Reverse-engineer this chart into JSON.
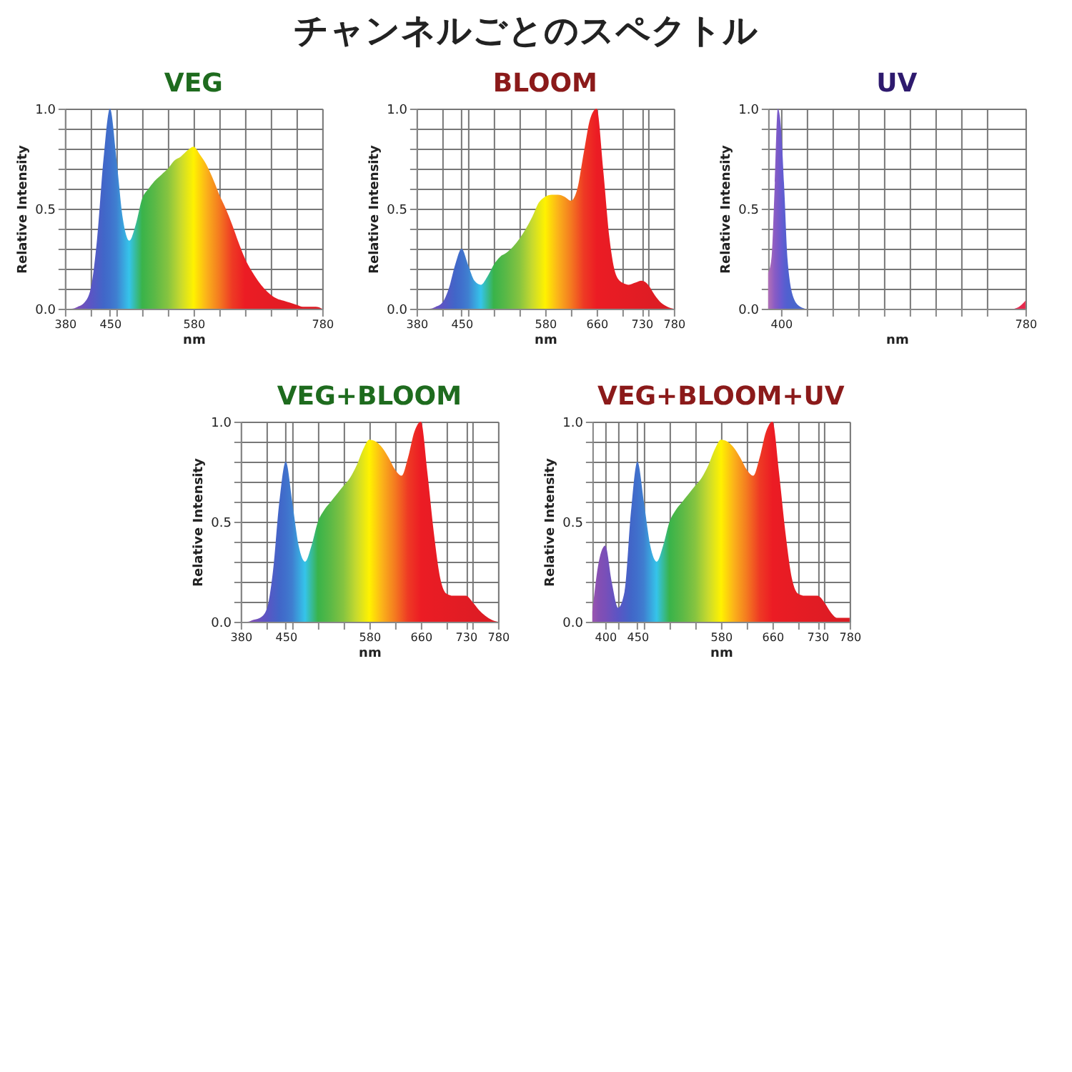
{
  "chart_data": [
    {
      "type": "other",
      "title": "チャンネルごとのスペクトル"
    },
    {
      "type": "area",
      "title": "VEG",
      "xlabel": "nm",
      "ylabel": "Relative Intensity",
      "grid": true,
      "xlim": [
        380,
        780
      ],
      "ylim": [
        0,
        1
      ],
      "xticks": [
        380,
        {
          "value": 420,
          "label": null
        },
        450,
        {
          "value": 460,
          "label": null
        },
        {
          "value": 500,
          "label": null
        },
        {
          "value": 540,
          "label": null
        },
        580,
        {
          "value": 620,
          "label": null
        },
        {
          "value": 660,
          "label": null
        },
        {
          "value": 700,
          "label": null
        },
        {
          "value": 740,
          "label": null
        },
        780
      ],
      "yticks": [
        {
          "value": 0,
          "label": "0.0"
        },
        {
          "value": 0.1,
          "label": null
        },
        {
          "value": 0.2,
          "label": null
        },
        {
          "value": 0.3,
          "label": null
        },
        {
          "value": 0.4,
          "label": null
        },
        {
          "value": 0.5,
          "label": "0.5"
        },
        {
          "value": 0.6,
          "label": null
        },
        {
          "value": 0.7,
          "label": null
        },
        {
          "value": 0.8,
          "label": null
        },
        {
          "value": 0.9,
          "label": null
        },
        {
          "value": 1,
          "label": "1.0"
        }
      ],
      "x": [
        380,
        390,
        400,
        410,
        420,
        430,
        440,
        450,
        460,
        470,
        480,
        490,
        500,
        510,
        520,
        530,
        540,
        550,
        560,
        570,
        580,
        590,
        600,
        610,
        620,
        630,
        640,
        650,
        660,
        670,
        680,
        690,
        700,
        710,
        720,
        730,
        740,
        750,
        760,
        770,
        780
      ],
      "series": [
        {
          "colors": [
            "#8d4fae",
            "#844fb3",
            "#7a4fb8",
            "#6a52be",
            "#5b55c4",
            "#4e5dc6",
            "#4166c8",
            "#4070cc",
            "#3f7fd0",
            "#3aa2dd",
            "#35c4ea",
            "#37bb9a",
            "#39b34a",
            "#4ab648",
            "#5cb946",
            "#71be43",
            "#86c440",
            "#a7cf37",
            "#c8da2e",
            "#e4e617",
            "#fff200",
            "#fdd20d",
            "#fbb21a",
            "#f7961d",
            "#f47a20",
            "#f15a22",
            "#ee3a24",
            "#ed2b24",
            "#ec1c24",
            "#ea1c24",
            "#e81c24",
            "#e71c24",
            "#e51c24",
            "#e41c24",
            "#e21c24",
            "#e11c24",
            "#df1c24",
            "#de1c24",
            "#dc1c24",
            "#db1c24",
            "#d91c24"
          ],
          "values": [
            0,
            0,
            0.01,
            0.03,
            0.1,
            0.35,
            0.75,
            1.0,
            0.75,
            0.45,
            0.34,
            0.42,
            0.55,
            0.6,
            0.64,
            0.67,
            0.7,
            0.74,
            0.76,
            0.79,
            0.81,
            0.77,
            0.72,
            0.65,
            0.57,
            0.5,
            0.42,
            0.33,
            0.25,
            0.19,
            0.14,
            0.1,
            0.07,
            0.05,
            0.04,
            0.03,
            0.02,
            0.01,
            0.01,
            0.01,
            0
          ]
        }
      ]
    },
    {
      "type": "area",
      "title": "BLOOM",
      "xlabel": "nm",
      "ylabel": "Relative Intensity",
      "grid": true,
      "xlim": [
        380,
        780
      ],
      "ylim": [
        0,
        1
      ],
      "xticks": [
        380,
        {
          "value": 420,
          "label": null
        },
        450,
        {
          "value": 460,
          "label": null
        },
        {
          "value": 500,
          "label": null
        },
        {
          "value": 540,
          "label": null
        },
        580,
        {
          "value": 620,
          "label": null
        },
        660,
        {
          "value": 700,
          "label": null
        },
        730,
        {
          "value": 740,
          "label": null
        },
        780
      ],
      "yticks": [
        {
          "value": 0,
          "label": "0.0"
        },
        {
          "value": 0.1,
          "label": null
        },
        {
          "value": 0.2,
          "label": null
        },
        {
          "value": 0.3,
          "label": null
        },
        {
          "value": 0.4,
          "label": null
        },
        {
          "value": 0.5,
          "label": "0.5"
        },
        {
          "value": 0.6,
          "label": null
        },
        {
          "value": 0.7,
          "label": null
        },
        {
          "value": 0.8,
          "label": null
        },
        {
          "value": 0.9,
          "label": null
        },
        {
          "value": 1,
          "label": "1.0"
        }
      ],
      "x": [
        380,
        390,
        400,
        410,
        420,
        430,
        440,
        450,
        460,
        470,
        480,
        490,
        500,
        510,
        520,
        530,
        540,
        550,
        560,
        570,
        580,
        590,
        600,
        610,
        620,
        630,
        640,
        650,
        660,
        670,
        680,
        690,
        700,
        710,
        720,
        730,
        740,
        750,
        760,
        770,
        780
      ],
      "series": [
        {
          "colors": [
            "#8d4fae",
            "#844fb3",
            "#7a4fb8",
            "#6a52be",
            "#5b55c4",
            "#4e5dc6",
            "#4166c8",
            "#4070cc",
            "#3f7fd0",
            "#3aa2dd",
            "#35c4ea",
            "#37bb9a",
            "#39b34a",
            "#4ab648",
            "#5cb946",
            "#71be43",
            "#86c440",
            "#a7cf37",
            "#c8da2e",
            "#e4e617",
            "#fff200",
            "#fdd20d",
            "#fbb21a",
            "#f7961d",
            "#f47a20",
            "#f15a22",
            "#ee3a24",
            "#ed2b24",
            "#ec1c24",
            "#ea1c24",
            "#e81c24",
            "#e71c24",
            "#e51c24",
            "#e41c24",
            "#e21c24",
            "#e11c24",
            "#df1c24",
            "#de1c24",
            "#dc1c24",
            "#db1c24",
            "#d91c24"
          ],
          "values": [
            0,
            0,
            0,
            0.01,
            0.03,
            0.1,
            0.22,
            0.3,
            0.22,
            0.14,
            0.12,
            0.16,
            0.22,
            0.26,
            0.28,
            0.31,
            0.35,
            0.4,
            0.46,
            0.53,
            0.56,
            0.57,
            0.57,
            0.56,
            0.54,
            0.6,
            0.78,
            0.95,
            1.0,
            0.7,
            0.35,
            0.17,
            0.13,
            0.12,
            0.13,
            0.14,
            0.12,
            0.07,
            0.03,
            0.01,
            0
          ]
        }
      ]
    },
    {
      "type": "area",
      "title": "UV",
      "xlabel": "nm",
      "ylabel": "Relative Intensity",
      "grid": true,
      "xlim": [
        380,
        780
      ],
      "ylim": [
        0,
        1
      ],
      "xticks": [
        400,
        {
          "value": 440,
          "label": null
        },
        {
          "value": 480,
          "label": null
        },
        {
          "value": 520,
          "label": null
        },
        {
          "value": 560,
          "label": null
        },
        {
          "value": 600,
          "label": null
        },
        {
          "value": 640,
          "label": null
        },
        {
          "value": 680,
          "label": null
        },
        {
          "value": 720,
          "label": null
        },
        780
      ],
      "yticks": [
        {
          "value": 0,
          "label": "0.0"
        },
        {
          "value": 0.1,
          "label": null
        },
        {
          "value": 0.2,
          "label": null
        },
        {
          "value": 0.3,
          "label": null
        },
        {
          "value": 0.4,
          "label": null
        },
        {
          "value": 0.5,
          "label": "0.5"
        },
        {
          "value": 0.6,
          "label": null
        },
        {
          "value": 0.7,
          "label": null
        },
        {
          "value": 0.8,
          "label": null
        },
        {
          "value": 0.9,
          "label": null
        },
        {
          "value": 1,
          "label": "1.0"
        }
      ],
      "x": [
        380,
        385,
        390,
        395,
        400,
        405,
        410,
        420,
        430,
        440,
        760,
        770,
        780
      ],
      "series": [
        {
          "colors": [
            "#b070b8",
            "#a066bc",
            "#8a5cc4",
            "#7a5ac8",
            "#6a5ad0",
            "#5a5ed0",
            "#5060d0",
            "#4a66cc",
            "#4a66cc",
            "#4a66cc",
            "#e0305a",
            "#e42c52",
            "#e8284a"
          ],
          "values": [
            0.18,
            0.25,
            0.6,
            1.0,
            0.9,
            0.6,
            0.25,
            0.05,
            0.01,
            0,
            0,
            0.01,
            0.04
          ]
        }
      ]
    },
    {
      "type": "area",
      "title": "VEG+BLOOM",
      "xlabel": "nm",
      "ylabel": "Relative Intensity",
      "grid": true,
      "xlim": [
        380,
        780
      ],
      "ylim": [
        0,
        1
      ],
      "xticks": [
        380,
        {
          "value": 420,
          "label": null
        },
        450,
        {
          "value": 460,
          "label": null
        },
        {
          "value": 500,
          "label": null
        },
        {
          "value": 540,
          "label": null
        },
        580,
        {
          "value": 620,
          "label": null
        },
        660,
        {
          "value": 700,
          "label": null
        },
        730,
        {
          "value": 740,
          "label": null
        },
        780
      ],
      "yticks": [
        {
          "value": 0,
          "label": "0.0"
        },
        {
          "value": 0.1,
          "label": null
        },
        {
          "value": 0.2,
          "label": null
        },
        {
          "value": 0.3,
          "label": null
        },
        {
          "value": 0.4,
          "label": null
        },
        {
          "value": 0.5,
          "label": "0.5"
        },
        {
          "value": 0.6,
          "label": null
        },
        {
          "value": 0.7,
          "label": null
        },
        {
          "value": 0.8,
          "label": null
        },
        {
          "value": 0.9,
          "label": null
        },
        {
          "value": 1,
          "label": "1.0"
        }
      ],
      "x": [
        380,
        390,
        400,
        410,
        420,
        430,
        440,
        450,
        460,
        470,
        480,
        490,
        500,
        510,
        520,
        530,
        540,
        550,
        560,
        570,
        580,
        590,
        600,
        610,
        620,
        630,
        640,
        650,
        660,
        670,
        680,
        690,
        700,
        710,
        720,
        730,
        740,
        750,
        760,
        770,
        780
      ],
      "series": [
        {
          "colors": [
            "#8d4fae",
            "#844fb3",
            "#7a4fb8",
            "#6a52be",
            "#5b55c4",
            "#4e5dc6",
            "#4166c8",
            "#4070cc",
            "#3f7fd0",
            "#3aa2dd",
            "#35c4ea",
            "#37bb9a",
            "#39b34a",
            "#4ab648",
            "#5cb946",
            "#71be43",
            "#86c440",
            "#a7cf37",
            "#c8da2e",
            "#e4e617",
            "#fff200",
            "#fdd20d",
            "#fbb21a",
            "#f7961d",
            "#f47a20",
            "#f15a22",
            "#ee3a24",
            "#ed2b24",
            "#ec1c24",
            "#ea1c24",
            "#e81c24",
            "#e71c24",
            "#e51c24",
            "#e41c24",
            "#e21c24",
            "#e11c24",
            "#df1c24",
            "#de1c24",
            "#dc1c24",
            "#db1c24",
            "#d91c24"
          ],
          "values": [
            0,
            0,
            0.01,
            0.02,
            0.06,
            0.25,
            0.6,
            0.8,
            0.6,
            0.38,
            0.3,
            0.38,
            0.5,
            0.56,
            0.6,
            0.64,
            0.68,
            0.72,
            0.78,
            0.86,
            0.91,
            0.9,
            0.87,
            0.82,
            0.76,
            0.73,
            0.82,
            0.95,
            1.0,
            0.75,
            0.45,
            0.22,
            0.14,
            0.13,
            0.13,
            0.13,
            0.1,
            0.06,
            0.03,
            0.01,
            0
          ]
        }
      ]
    },
    {
      "type": "area",
      "title": "VEG+BLOOM+UV",
      "xlabel": "nm",
      "ylabel": "Relative Intensity",
      "grid": true,
      "xlim": [
        380,
        780
      ],
      "ylim": [
        0,
        1
      ],
      "xticks": [
        400,
        {
          "value": 420,
          "label": null
        },
        450,
        {
          "value": 460,
          "label": null
        },
        {
          "value": 500,
          "label": null
        },
        {
          "value": 540,
          "label": null
        },
        580,
        {
          "value": 620,
          "label": null
        },
        660,
        {
          "value": 700,
          "label": null
        },
        730,
        {
          "value": 740,
          "label": null
        },
        780
      ],
      "yticks": [
        {
          "value": 0,
          "label": "0.0"
        },
        {
          "value": 0.1,
          "label": null
        },
        {
          "value": 0.2,
          "label": null
        },
        {
          "value": 0.3,
          "label": null
        },
        {
          "value": 0.4,
          "label": null
        },
        {
          "value": 0.5,
          "label": "0.5"
        },
        {
          "value": 0.6,
          "label": null
        },
        {
          "value": 0.7,
          "label": null
        },
        {
          "value": 0.8,
          "label": null
        },
        {
          "value": 0.9,
          "label": null
        },
        {
          "value": 1,
          "label": "1.0"
        }
      ],
      "x": [
        380,
        390,
        400,
        410,
        420,
        430,
        440,
        450,
        460,
        470,
        480,
        490,
        500,
        510,
        520,
        530,
        540,
        550,
        560,
        570,
        580,
        590,
        600,
        610,
        620,
        630,
        640,
        650,
        660,
        670,
        680,
        690,
        700,
        710,
        720,
        730,
        740,
        750,
        760,
        770,
        780
      ],
      "series": [
        {
          "colors": [
            "#9a55b0",
            "#844fb3",
            "#7a4fb8",
            "#6a52be",
            "#5b55c4",
            "#4e5dc6",
            "#4166c8",
            "#4070cc",
            "#3f7fd0",
            "#3aa2dd",
            "#35c4ea",
            "#37bb9a",
            "#39b34a",
            "#4ab648",
            "#5cb946",
            "#71be43",
            "#86c440",
            "#a7cf37",
            "#c8da2e",
            "#e4e617",
            "#fff200",
            "#fdd20d",
            "#fbb21a",
            "#f7961d",
            "#f47a20",
            "#f15a22",
            "#ee3a24",
            "#ed2b24",
            "#ec1c24",
            "#ea1c24",
            "#e81c24",
            "#e71c24",
            "#e51c24",
            "#e41c24",
            "#e21c24",
            "#e11c24",
            "#df1c24",
            "#de1c24",
            "#dc1c24",
            "#db1c24",
            "#d91c24"
          ],
          "values": [
            0.05,
            0.3,
            0.38,
            0.2,
            0.07,
            0.15,
            0.55,
            0.8,
            0.6,
            0.38,
            0.3,
            0.38,
            0.5,
            0.56,
            0.6,
            0.64,
            0.68,
            0.72,
            0.78,
            0.86,
            0.91,
            0.9,
            0.87,
            0.82,
            0.76,
            0.73,
            0.82,
            0.95,
            1.0,
            0.75,
            0.45,
            0.22,
            0.14,
            0.13,
            0.13,
            0.13,
            0.1,
            0.05,
            0.02,
            0.02,
            0.02
          ]
        }
      ]
    }
  ]
}
